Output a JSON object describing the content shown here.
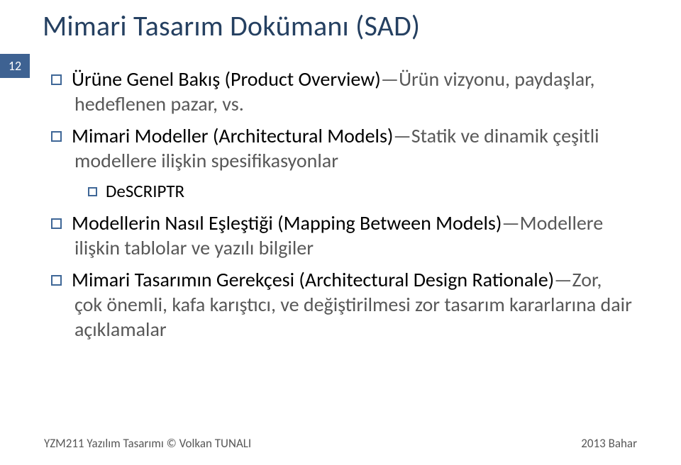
{
  "title": "Mimari Tasarım Dokümanı (SAD)",
  "page_number": "12",
  "colors": {
    "title_color": "#254061",
    "bullet_border": "#3f6797",
    "badge_bg": "#3e6292",
    "gray_text": "#585858",
    "body_text": "#000000",
    "background": "#ffffff"
  },
  "items": [
    {
      "bold": "Ürüne Genel Bakış (Product Overview)",
      "desc": "—Ürün vizyonu, paydaşlar, hedeflenen pazar, vs."
    },
    {
      "bold": "Mimari Modeller (Architectural Models)",
      "desc": "—Statik ve dinamik çeşitli modellere ilişkin spesifikasyonlar",
      "sub": [
        {
          "bold": "DeSCRIPTR",
          "desc": ""
        }
      ]
    },
    {
      "bold": "Modellerin Nasıl Eşleştiği (Mapping Between Models)",
      "desc": "—Modellere ilişkin tablolar ve yazılı bilgiler"
    },
    {
      "bold": "Mimari Tasarımın Gerekçesi (Architectural Design Rationale)",
      "desc": "—Zor, çok önemli, kafa karıştıcı, ve değiştirilmesi zor tasarım kararlarına dair açıklamalar"
    }
  ],
  "footer": {
    "left": "YZM211 Yazılım Tasarımı © Volkan TUNALI",
    "right": "2013 Bahar"
  }
}
